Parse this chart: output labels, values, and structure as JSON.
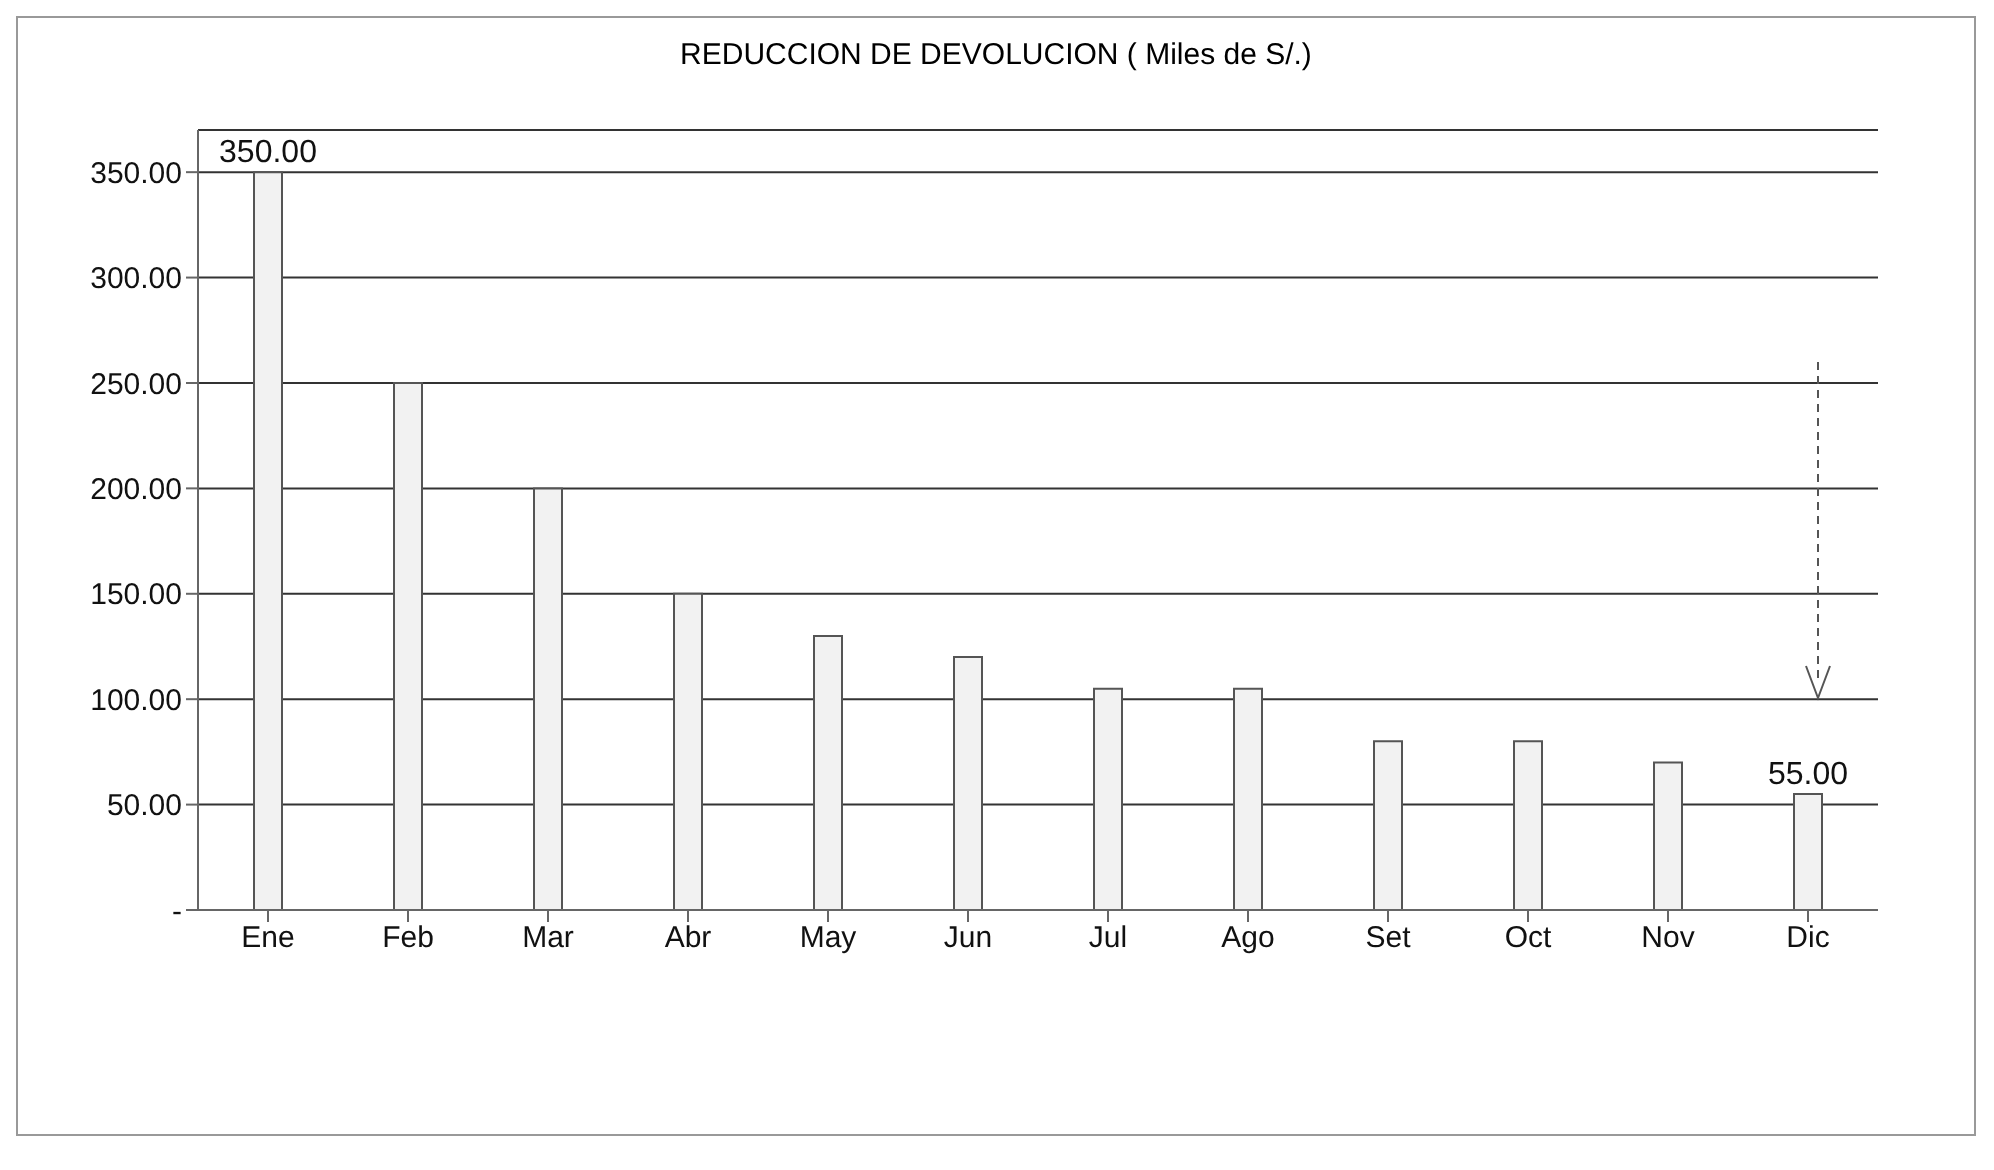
{
  "chart_data": {
    "type": "bar",
    "title": "REDUCCION DE DEVOLUCION ( Miles de S/.)",
    "categories": [
      "Ene",
      "Feb",
      "Mar",
      "Abr",
      "May",
      "Jun",
      "Jul",
      "Ago",
      "Set",
      "Oct",
      "Nov",
      "Dic"
    ],
    "values": [
      350,
      250,
      200,
      150,
      130,
      120,
      105,
      105,
      80,
      80,
      70,
      55
    ],
    "value_labels": [
      "350.00",
      null,
      null,
      null,
      null,
      null,
      null,
      null,
      null,
      null,
      null,
      "55.00"
    ],
    "color": "#f2f2f2",
    "ylim": [
      0,
      370
    ],
    "yticks": [
      {
        "value": 0,
        "label": "-"
      },
      {
        "value": 50,
        "label": "50.00"
      },
      {
        "value": 100,
        "label": "100.00"
      },
      {
        "value": 150,
        "label": "150.00"
      },
      {
        "value": 200,
        "label": "200.00"
      },
      {
        "value": 250,
        "label": "250.00"
      },
      {
        "value": 300,
        "label": "300.00"
      },
      {
        "value": 350,
        "label": "350.00"
      }
    ],
    "grid": "y"
  }
}
